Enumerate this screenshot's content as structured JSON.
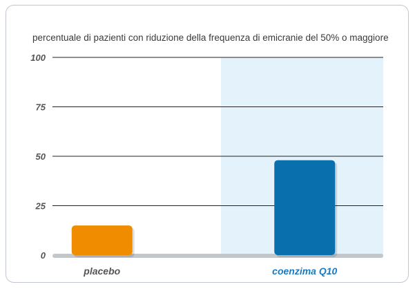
{
  "chart_data": {
    "type": "bar",
    "title": "percentuale di pazienti con riduzione della frequenza di emicranie del 50% o maggiore",
    "categories": [
      "placebo",
      "coenzima Q10"
    ],
    "values": [
      15,
      48
    ],
    "ylim": [
      0,
      100
    ],
    "yticks": [
      "0",
      "25",
      "50",
      "75",
      "100"
    ],
    "ytick_values": [
      0,
      25,
      50,
      75,
      100
    ],
    "grid": true,
    "highlight_category": "coenzima Q10",
    "colors": {
      "bars": [
        "#f08c00",
        "#0a6fad"
      ],
      "category_labels": [
        "#555555",
        "#1a7bbf"
      ],
      "highlight_panel": "#e3f2fb",
      "gridline": "#222222",
      "baseline": "#c4c7ca"
    }
  }
}
